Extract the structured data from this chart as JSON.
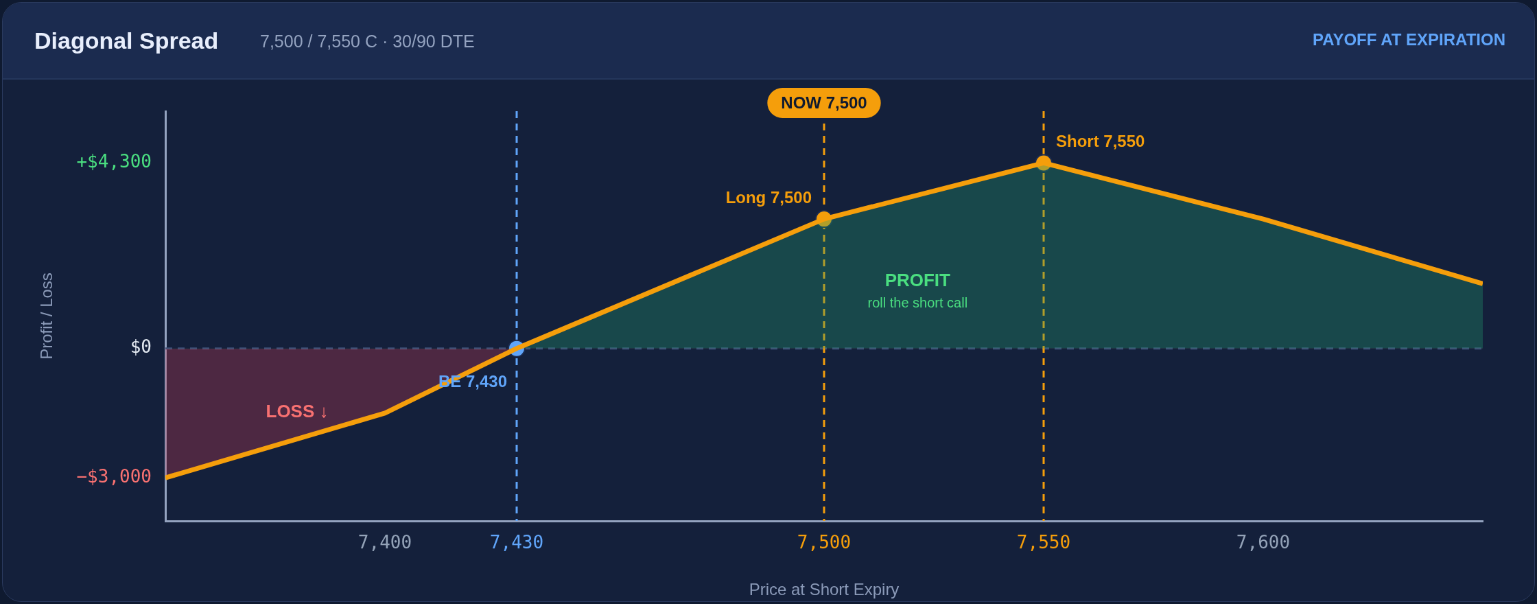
{
  "chart_data": {
    "type": "line",
    "title": "Diagonal Spread",
    "subtitle": "7,500 / 7,550 C · 30/90 DTE",
    "xlabel": "Price at Short Expiry",
    "ylabel": "Profit / Loss",
    "x": [
      7350,
      7400,
      7430,
      7500,
      7550,
      7600,
      7650
    ],
    "series": [
      {
        "color": "#f59e0b",
        "values": [
          -3000,
          -1500,
          0,
          3000,
          4300,
          3000,
          1500
        ],
        "marker": "none"
      },
      {
        "type": "scatter",
        "x": [
          7430,
          7500,
          7550
        ],
        "values": [
          0,
          3000,
          4300
        ],
        "colors": [
          "#60a5fa",
          "#f59e0b",
          "#f59e0b"
        ],
        "marker": "circle"
      }
    ],
    "xlim": [
      7350,
      7650
    ],
    "xticks": [
      {
        "value": 7400,
        "label": "7,400"
      },
      {
        "value": 7430,
        "label": "7,430"
      },
      {
        "value": 7500,
        "label": "7,500"
      },
      {
        "value": 7550,
        "label": "7,550"
      },
      {
        "value": 7600,
        "label": "7,600"
      }
    ],
    "ylim": [
      -4000,
      5500
    ],
    "yticks": [
      {
        "value": -3000,
        "label": "−$3,000"
      },
      {
        "value": 0,
        "label": "$0"
      },
      {
        "value": 4300,
        "label": "+$4,300"
      }
    ],
    "ref_lines": [
      {
        "axis": "y",
        "value": 0,
        "color": "#3b4f7a",
        "line_style": "dashed"
      },
      {
        "axis": "x",
        "value": 7430,
        "color": "#60a5fa",
        "line_style": "dashed"
      },
      {
        "axis": "x",
        "value": 7500,
        "color": "#f59e0b",
        "line_style": "dashed",
        "label": "NOW 7,500"
      },
      {
        "axis": "x",
        "value": 7550,
        "color": "#f59e0b",
        "line_style": "dashed"
      }
    ],
    "annotations": [
      "PAYOFF AT EXPIRATION",
      {
        "text": "BE 7,430",
        "x": 7430,
        "y": 0
      },
      {
        "text": "Long 7,500",
        "x": 7500,
        "y": 3000
      },
      {
        "text": "Short 7,550",
        "x": 7550,
        "y": 4300
      },
      "LOSS ↓",
      "PROFIT",
      "roll the short call"
    ],
    "grid": false,
    "legend": false
  }
}
